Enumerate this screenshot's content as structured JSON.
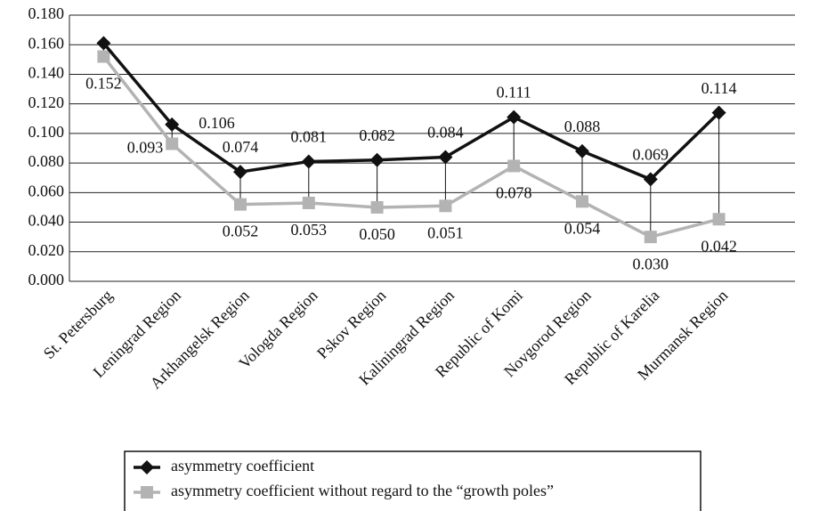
{
  "chart_data": {
    "type": "line",
    "categories": [
      "St. Petersburg",
      "Leningrad Region",
      "Arkhangelsk Region",
      "Vologda Region",
      "Pskov Region",
      "Kaliningrad Region",
      "Republic of Komi",
      "Novgorod Region",
      "Republic of Karelia",
      "Murmansk Region"
    ],
    "series": [
      {
        "name": "asymmetry coefficient",
        "color": "#111111",
        "marker": "diamond",
        "values": [
          0.161,
          0.106,
          0.074,
          0.081,
          0.082,
          0.084,
          0.111,
          0.088,
          0.069,
          0.114
        ],
        "value_labels": [
          null,
          "0.106",
          "0.074",
          "0.081",
          "0.082",
          "0.084",
          "0.111",
          "0.088",
          "0.069",
          "0.114"
        ]
      },
      {
        "name": "asymmetry coefficient without regard to the “growth poles”",
        "color": "#b3b3b3",
        "marker": "square",
        "values": [
          0.152,
          0.093,
          0.052,
          0.053,
          0.05,
          0.051,
          0.078,
          0.054,
          0.03,
          0.042
        ],
        "value_labels": [
          "0.152",
          "0.093",
          "0.052",
          "0.053",
          "0.050",
          "0.051",
          "0.078",
          "0.054",
          "0.030",
          "0.042"
        ]
      }
    ],
    "ylim": [
      0,
      0.18
    ],
    "yticks": [
      {
        "value": 0,
        "label": "0.000"
      },
      {
        "value": 0.02,
        "label": "0.020"
      },
      {
        "value": 0.04,
        "label": "0.040"
      },
      {
        "value": 0.06,
        "label": "0.060"
      },
      {
        "value": 0.08,
        "label": "0.080"
      },
      {
        "value": 0.1,
        "label": "0.100"
      },
      {
        "value": 0.12,
        "label": "0.120"
      },
      {
        "value": 0.14,
        "label": "0.140"
      },
      {
        "value": 0.16,
        "label": "0.160"
      },
      {
        "value": 0.18,
        "label": "0.180"
      }
    ],
    "grid": true,
    "high_low_lines": true,
    "legend": "bottom"
  }
}
